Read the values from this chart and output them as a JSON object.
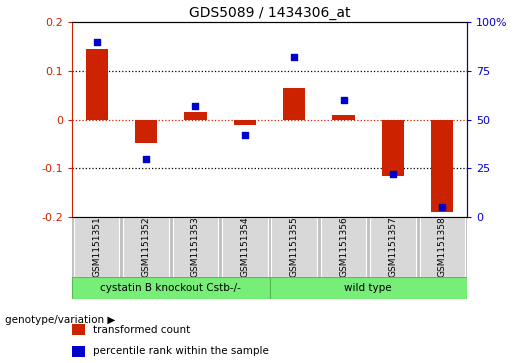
{
  "title": "GDS5089 / 1434306_at",
  "samples": [
    "GSM1151351",
    "GSM1151352",
    "GSM1151353",
    "GSM1151354",
    "GSM1151355",
    "GSM1151356",
    "GSM1151357",
    "GSM1151358"
  ],
  "transformed_count": [
    0.145,
    -0.048,
    0.015,
    -0.012,
    0.065,
    0.01,
    -0.115,
    -0.19
  ],
  "percentile_rank": [
    90,
    30,
    57,
    42,
    82,
    60,
    22,
    5
  ],
  "ylim_left": [
    -0.2,
    0.2
  ],
  "ylim_right": [
    0,
    100
  ],
  "yticks_left": [
    -0.2,
    -0.1,
    0.0,
    0.1,
    0.2
  ],
  "yticks_right": [
    0,
    25,
    50,
    75,
    100
  ],
  "ytick_labels_left": [
    "-0.2",
    "-0.1",
    "0",
    "0.1",
    "0.2"
  ],
  "ytick_labels_right": [
    "0",
    "25",
    "50",
    "75",
    "100%"
  ],
  "left_color": "#cc2200",
  "right_color": "#0000cc",
  "dotted_line_values": [
    -0.1,
    0.0,
    0.1
  ],
  "red_dotted": 0.0,
  "group1_label": "cystatin B knockout Cstb-/-",
  "group2_label": "wild type",
  "group_color": "#77ee77",
  "group_border_color": "#55bb55",
  "group_row_label": "genotype/variation",
  "legend_items": [
    {
      "color": "#cc2200",
      "label": "transformed count"
    },
    {
      "color": "#0000cc",
      "label": "percentile rank within the sample"
    }
  ],
  "background_color": "#ffffff",
  "bar_width": 0.45,
  "sample_cell_color": "#d8d8d8",
  "sample_area_color": "#c0c0c0",
  "title_fontsize": 10,
  "axis_fontsize": 8,
  "sample_fontsize": 6.5,
  "group_fontsize": 7.5,
  "legend_fontsize": 7.5,
  "genotype_label_fontsize": 7.5
}
